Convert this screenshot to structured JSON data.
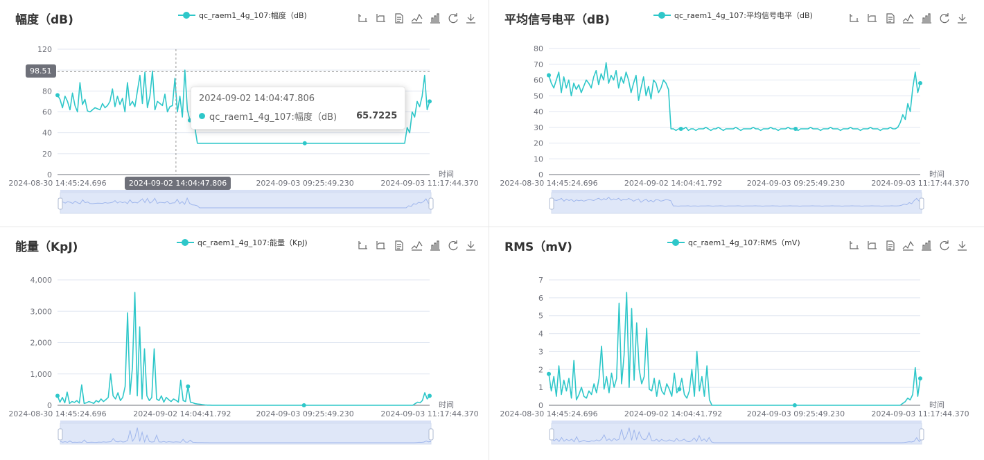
{
  "accent": "#2ec7c9",
  "axis_color": "#6e7079",
  "grid_color": "#e0e6f1",
  "toolbox_icons": [
    "crop-zoom-icon",
    "zoom-reset-icon",
    "data-view-icon",
    "line-chart-icon",
    "bar-chart-icon",
    "restore-icon",
    "download-icon"
  ],
  "x_tick_labels": [
    "2024-08-30 14:45:24.696",
    "2024-09-02 14:04:41.792",
    "2024-09-03 09:25:49.230",
    "2024-09-03 11:17:44.370"
  ],
  "x_axis_name": "时间",
  "panels": [
    {
      "title": "幅度（dB)",
      "legend": "qc_raem1_4g_107:幅度（dB)",
      "y_max": 120,
      "y_ticks": [
        "0",
        "20",
        "40",
        "60",
        "80",
        "100",
        "120"
      ],
      "x_tick_labels": [
        "2024-08-30 14:45:24.696",
        "2024-09-02 14:04:47.806",
        "2024-09-03 09:25:49.230",
        "2024-09-03 11:17:44.370"
      ],
      "tooltip": {
        "time": "2024-09-02 14:04:47.806",
        "series": "qc_raem1_4g_107:幅度（dB)",
        "value": "65.7225",
        "y_pointer_label": "98.51",
        "x_pointer_label": "2024-09-02 14:04:47.806"
      }
    },
    {
      "title": "平均信号电平（dB)",
      "legend": "qc_raem1_4g_107:平均信号电平（dB)",
      "y_max": 80,
      "y_ticks": [
        "0",
        "10",
        "20",
        "30",
        "40",
        "50",
        "60",
        "70",
        "80"
      ],
      "x_tick_labels": [
        "2024-08-30 14:45:24.696",
        "2024-09-02 14:04:41.792",
        "2024-09-03 09:25:49.230",
        "2024-09-03 11:17:44.370"
      ]
    },
    {
      "title": "能量（KpJ)",
      "legend": "qc_raem1_4g_107:能量（KpJ)",
      "y_max": 4000,
      "y_ticks": [
        "0",
        "1,000",
        "2,000",
        "3,000",
        "4,000"
      ],
      "x_tick_labels": [
        "2024-08-30 14:45:24.696",
        "2024-09-02 14:04:41.792",
        "2024-09-03 09:25:49.230",
        "2024-09-03 11:17:44.370"
      ]
    },
    {
      "title": "RMS（mV)",
      "legend": "qc_raem1_4g_107:RMS（mV)",
      "y_max": 7,
      "y_ticks": [
        "0",
        "1",
        "2",
        "3",
        "4",
        "5",
        "6",
        "7"
      ],
      "x_tick_labels": [
        "2024-08-30 14:45:24.696",
        "2024-09-02 14:04:41.792",
        "2024-09-03 09:25:49.230",
        "2024-09-03 11:17:44.370"
      ]
    }
  ],
  "chart_data": [
    {
      "type": "line",
      "title": "幅度（dB)",
      "xlabel": "时间",
      "ylim": [
        0,
        120
      ],
      "grid": true,
      "legend": "top-center",
      "series": [
        {
          "name": "qc_raem1_4g_107:幅度（dB)",
          "values": [
            76,
            72,
            64,
            75,
            70,
            62,
            78,
            66,
            60,
            88,
            67,
            72,
            61,
            60,
            62,
            64,
            63,
            62,
            68,
            64,
            66,
            70,
            82,
            65,
            75,
            67,
            73,
            60,
            88,
            66,
            70,
            65,
            80,
            95,
            68,
            98,
            64,
            75,
            99,
            62,
            70,
            68,
            66,
            77,
            60,
            65,
            66,
            92,
            60,
            75,
            55,
            100,
            62,
            52,
            50,
            45,
            30,
            30,
            30,
            30,
            30,
            30,
            30,
            30,
            30,
            30,
            30,
            30,
            30,
            30,
            30,
            30,
            30,
            30,
            30,
            30,
            30,
            30,
            30,
            30,
            30,
            30,
            30,
            30,
            30,
            30,
            30,
            30,
            30,
            30,
            30,
            30,
            30,
            30,
            30,
            30,
            30,
            30,
            30,
            30,
            30,
            30,
            30,
            30,
            30,
            30,
            30,
            30,
            30,
            30,
            30,
            30,
            30,
            30,
            30,
            30,
            30,
            30,
            30,
            30,
            30,
            30,
            30,
            30,
            30,
            30,
            30,
            30,
            30,
            30,
            30,
            30,
            30,
            30,
            30,
            30,
            30,
            30,
            30,
            30,
            45,
            40,
            60,
            55,
            70,
            65,
            75,
            95,
            62,
            70
          ]
        }
      ]
    },
    {
      "type": "line",
      "title": "平均信号电平（dB)",
      "xlabel": "时间",
      "ylim": [
        0,
        80
      ],
      "grid": true,
      "legend": "top-center",
      "series": [
        {
          "name": "qc_raem1_4g_107:平均信号电平（dB)",
          "values": [
            63,
            58,
            55,
            60,
            65,
            52,
            62,
            55,
            60,
            50,
            58,
            54,
            57,
            52,
            56,
            60,
            58,
            55,
            62,
            66,
            57,
            64,
            60,
            71,
            58,
            63,
            60,
            66,
            55,
            62,
            58,
            65,
            60,
            52,
            58,
            63,
            47,
            55,
            62,
            50,
            56,
            48,
            60,
            58,
            52,
            55,
            60,
            58,
            54,
            29,
            29,
            28,
            29,
            29,
            29,
            30,
            28,
            29,
            29,
            28,
            29,
            29,
            29,
            30,
            29,
            28,
            29,
            29,
            30,
            29,
            28,
            29,
            29,
            29,
            29,
            30,
            29,
            28,
            29,
            29,
            29,
            29,
            30,
            29,
            29,
            28,
            29,
            29,
            29,
            30,
            29,
            29,
            28,
            29,
            29,
            29,
            30,
            29,
            29,
            29,
            28,
            29,
            29,
            29,
            29,
            30,
            29,
            29,
            29,
            28,
            29,
            29,
            29,
            30,
            29,
            29,
            29,
            28,
            29,
            29,
            29,
            30,
            29,
            29,
            29,
            28,
            29,
            29,
            29,
            30,
            29,
            29,
            29,
            28,
            29,
            29,
            29,
            30,
            29,
            29,
            30,
            33,
            38,
            35,
            45,
            40,
            55,
            65,
            52,
            58
          ]
        }
      ]
    },
    {
      "type": "line",
      "title": "能量（KpJ)",
      "xlabel": "时间",
      "ylim": [
        0,
        4000
      ],
      "grid": true,
      "legend": "top-center",
      "series": [
        {
          "name": "qc_raem1_4g_107:能量（KpJ)",
          "values": [
            300,
            100,
            250,
            80,
            420,
            60,
            120,
            90,
            150,
            70,
            650,
            60,
            80,
            120,
            90,
            60,
            150,
            100,
            200,
            120,
            180,
            250,
            1000,
            300,
            200,
            400,
            150,
            250,
            600,
            2950,
            350,
            1200,
            3600,
            300,
            2500,
            200,
            1800,
            300,
            150,
            250,
            1800,
            200,
            150,
            300,
            100,
            250,
            180,
            120,
            200,
            160,
            100,
            800,
            150,
            120,
            600,
            100,
            80,
            50,
            40,
            30,
            20,
            10,
            5,
            5,
            0,
            0,
            0,
            0,
            0,
            0,
            0,
            0,
            0,
            0,
            0,
            0,
            0,
            0,
            0,
            0,
            0,
            0,
            0,
            0,
            0,
            0,
            0,
            0,
            0,
            0,
            0,
            0,
            0,
            0,
            0,
            0,
            0,
            0,
            0,
            0,
            0,
            0,
            0,
            0,
            0,
            0,
            0,
            0,
            0,
            0,
            0,
            0,
            0,
            0,
            0,
            0,
            0,
            0,
            0,
            0,
            0,
            0,
            0,
            0,
            0,
            0,
            0,
            0,
            0,
            0,
            0,
            0,
            0,
            0,
            0,
            0,
            0,
            0,
            0,
            0,
            0,
            0,
            0,
            0,
            0,
            0,
            0,
            0,
            50,
            100,
            80,
            150,
            400,
            200,
            300
          ]
        }
      ]
    },
    {
      "type": "line",
      "title": "RMS（mV)",
      "xlabel": "时间",
      "ylim": [
        0,
        7
      ],
      "grid": true,
      "legend": "top-center",
      "series": [
        {
          "name": "qc_raem1_4g_107:RMS（mV)",
          "values": [
            1.75,
            0.8,
            1.6,
            0.5,
            2.2,
            0.6,
            1.4,
            0.8,
            1.5,
            0.4,
            2.5,
            0.3,
            0.6,
            1.0,
            0.5,
            0.4,
            0.8,
            0.6,
            1.2,
            0.7,
            1.5,
            3.3,
            0.9,
            1.6,
            0.7,
            1.8,
            1.0,
            1.5,
            5.7,
            1.2,
            2.8,
            6.3,
            1.0,
            5.4,
            1.4,
            4.6,
            2.0,
            1.2,
            1.6,
            4.3,
            0.9,
            0.8,
            1.5,
            0.5,
            1.4,
            0.8,
            0.6,
            1.2,
            0.9,
            0.5,
            1.8,
            0.7,
            0.9,
            1.5,
            0.6,
            0.4,
            0.8,
            2.0,
            0.5,
            3.0,
            0.8,
            1.6,
            0.5,
            2.2,
            0.3,
            0.0,
            0.0,
            0.0,
            0.0,
            0.0,
            0.0,
            0.0,
            0.0,
            0.0,
            0.0,
            0.0,
            0.0,
            0.0,
            0.0,
            0.0,
            0.0,
            0.0,
            0.0,
            0.0,
            0.0,
            0.0,
            0.0,
            0.0,
            0.0,
            0.0,
            0.0,
            0.0,
            0.0,
            0.0,
            0.0,
            0.0,
            0.0,
            0.0,
            0.0,
            0.0,
            0.0,
            0.0,
            0.0,
            0.0,
            0.0,
            0.0,
            0.0,
            0.0,
            0.0,
            0.0,
            0.0,
            0.0,
            0.0,
            0.0,
            0.0,
            0.0,
            0.0,
            0.0,
            0.0,
            0.0,
            0.0,
            0.0,
            0.0,
            0.0,
            0.0,
            0.0,
            0.0,
            0.0,
            0.0,
            0.0,
            0.0,
            0.0,
            0.0,
            0.0,
            0.0,
            0.0,
            0.0,
            0.0,
            0.0,
            0.0,
            0.0,
            0.1,
            0.2,
            0.4,
            0.3,
            0.6,
            2.1,
            0.5,
            1.5
          ]
        }
      ]
    }
  ]
}
